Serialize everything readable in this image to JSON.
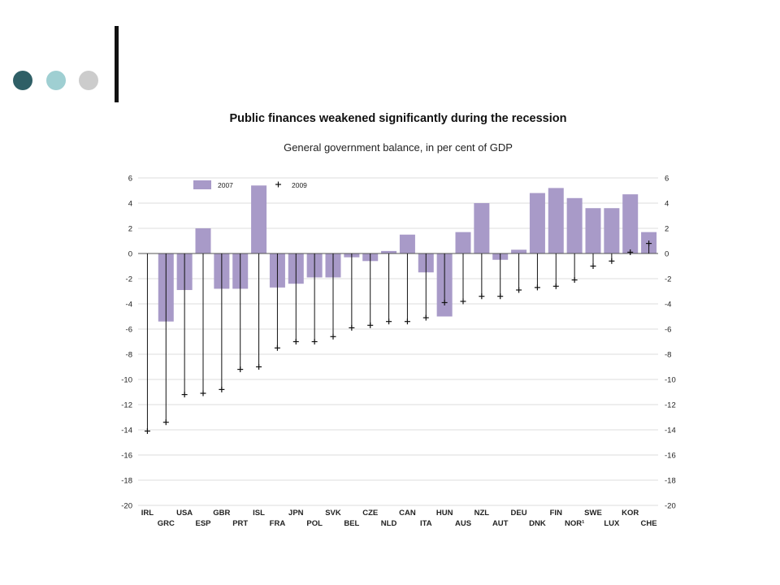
{
  "decor": {
    "dot_colors": [
      "#2f5f66",
      "#9fcfd2",
      "#cccccc"
    ]
  },
  "chart_data": {
    "type": "bar",
    "title": "Public finances weakened significantly during the recession",
    "subtitle": "General government balance, in per cent of GDP",
    "xlabel": "",
    "ylabel": "",
    "ylim": [
      -20,
      6
    ],
    "yticks": [
      6,
      4,
      2,
      0,
      -2,
      -4,
      -6,
      -8,
      -10,
      -12,
      -14,
      -16,
      -18,
      -20
    ],
    "grid": true,
    "legend_position": "top-left",
    "bar_color": "#a89ac8",
    "categories": [
      "IRL",
      "GRC",
      "USA",
      "ESP",
      "GBR",
      "PRT",
      "ISL",
      "FRA",
      "JPN",
      "POL",
      "SVK",
      "BEL",
      "CZE",
      "NLD",
      "CAN",
      "ITA",
      "HUN",
      "AUS",
      "NZL",
      "AUT",
      "DEU",
      "DNK",
      "FIN",
      "NOR¹",
      "SWE",
      "LUX",
      "KOR",
      "CHE"
    ],
    "series": [
      {
        "name": "2007",
        "mark": "bar",
        "values": [
          0.0,
          -5.4,
          -2.9,
          2.0,
          -2.8,
          -2.8,
          5.4,
          -2.7,
          -2.4,
          -1.9,
          -1.9,
          -0.3,
          -0.6,
          0.2,
          1.5,
          -1.5,
          -5.0,
          1.7,
          4.0,
          -0.5,
          0.3,
          4.8,
          5.2,
          4.4,
          3.6,
          3.6,
          4.7,
          1.7
        ]
      },
      {
        "name": "2009",
        "mark": "cross",
        "values": [
          -14.1,
          -13.4,
          -11.2,
          -11.1,
          -10.8,
          -9.2,
          -9.0,
          -7.5,
          -7.0,
          -7.0,
          -6.6,
          -5.9,
          -5.7,
          -5.4,
          -5.4,
          -5.1,
          -3.9,
          -3.8,
          -3.4,
          -3.4,
          -2.9,
          -2.7,
          -2.6,
          -2.1,
          -1.0,
          -0.6,
          0.1,
          0.8
        ]
      }
    ]
  }
}
